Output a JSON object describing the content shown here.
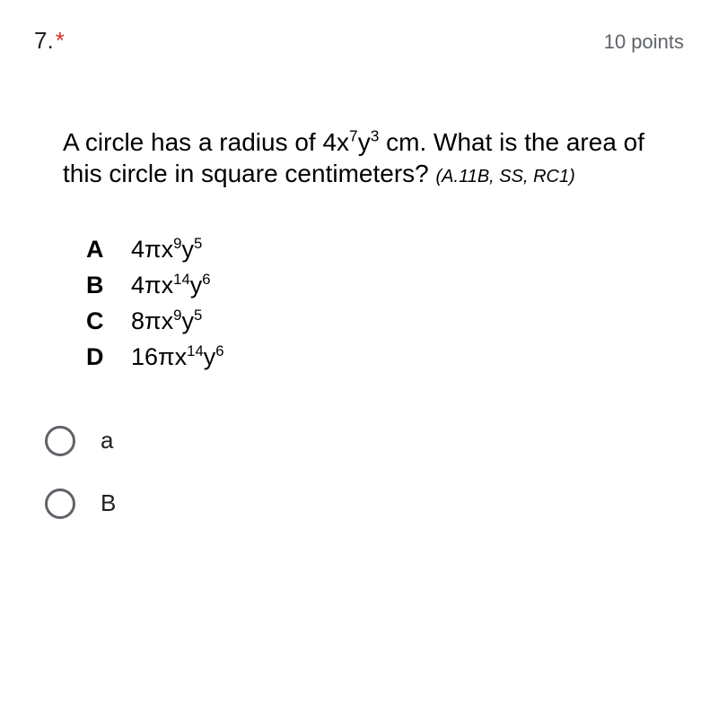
{
  "header": {
    "number": "7.",
    "required_marker": "*",
    "points": "10 points"
  },
  "question": {
    "line1_pre": "A circle has a radius of 4x",
    "line1_sup1": "7",
    "line1_mid": "y",
    "line1_sup2": "3",
    "line1_post": " cm. What is the area of this circle in square centimeters? ",
    "meta": "(A.11B, SS, RC1)"
  },
  "choices": [
    {
      "letter": "A",
      "coef": "4πx",
      "e1": "9",
      "mid": "y",
      "e2": "5"
    },
    {
      "letter": "B",
      "coef": "4πx",
      "e1": "14",
      "mid": "y",
      "e2": "6"
    },
    {
      "letter": "C",
      "coef": "8πx",
      "e1": "9",
      "mid": "y",
      "e2": "5"
    },
    {
      "letter": "D",
      "coef": "16πx",
      "e1": "14",
      "mid": "y",
      "e2": "6"
    }
  ],
  "radios": [
    {
      "label": "a"
    },
    {
      "label": "B"
    }
  ],
  "colors": {
    "required": "#d93025",
    "text": "#202124",
    "muted": "#5f6368",
    "bg": "#ffffff"
  }
}
